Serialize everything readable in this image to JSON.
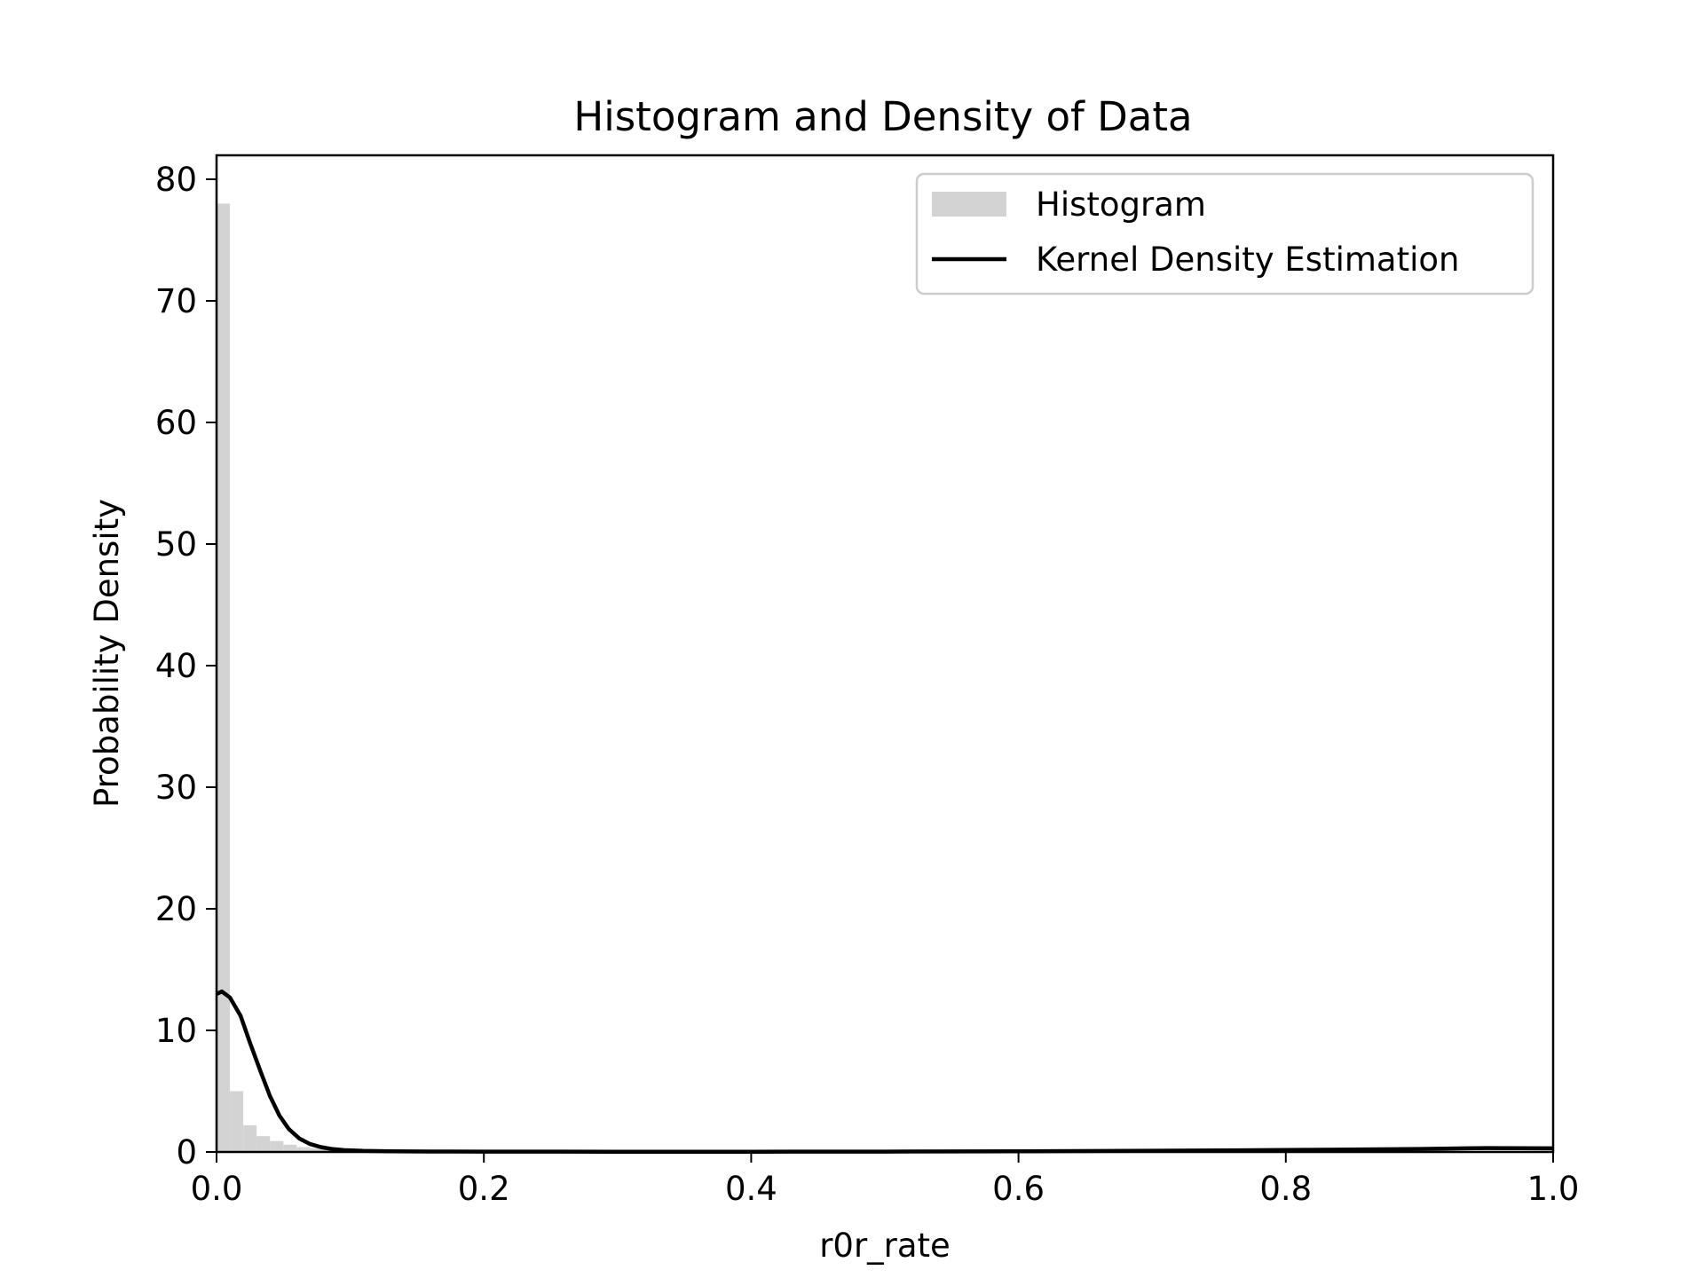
{
  "chart_data": {
    "type": "bar",
    "title": "Histogram and Density of Data",
    "xlabel": "r0r_rate",
    "ylabel": "Probability Density",
    "xlim": [
      0.0,
      1.0
    ],
    "ylim": [
      0,
      82
    ],
    "xticks": [
      0.0,
      0.2,
      0.4,
      0.6,
      0.8,
      1.0
    ],
    "xtick_labels": [
      "0.0",
      "0.2",
      "0.4",
      "0.6",
      "0.8",
      "1.0"
    ],
    "yticks": [
      0,
      10,
      20,
      30,
      40,
      50,
      60,
      70,
      80
    ],
    "ytick_labels": [
      "0",
      "10",
      "20",
      "30",
      "40",
      "50",
      "60",
      "70",
      "80"
    ],
    "grid": false,
    "legend_position": "top-right",
    "histogram": {
      "name": "Histogram",
      "color": "#d3d3d3",
      "bin_width": 0.01,
      "bins": [
        {
          "x0": 0.0,
          "value": 78.0
        },
        {
          "x0": 0.01,
          "value": 5.0
        },
        {
          "x0": 0.02,
          "value": 2.2
        },
        {
          "x0": 0.03,
          "value": 1.3
        },
        {
          "x0": 0.04,
          "value": 0.9
        },
        {
          "x0": 0.05,
          "value": 0.6
        },
        {
          "x0": 0.06,
          "value": 0.4
        },
        {
          "x0": 0.07,
          "value": 0.3
        },
        {
          "x0": 0.08,
          "value": 0.2
        },
        {
          "x0": 0.09,
          "value": 0.15
        },
        {
          "x0": 0.1,
          "value": 0.1
        },
        {
          "x0": 0.11,
          "value": 0.08
        },
        {
          "x0": 0.12,
          "value": 0.06
        },
        {
          "x0": 0.13,
          "value": 0.05
        }
      ]
    },
    "kde": {
      "name": "Kernel Density Estimation",
      "color": "#000000",
      "x": [
        0.0,
        0.004,
        0.01,
        0.018,
        0.025,
        0.033,
        0.04,
        0.047,
        0.054,
        0.062,
        0.07,
        0.078,
        0.086,
        0.095,
        0.11,
        0.13,
        0.16,
        0.2,
        0.3,
        0.4,
        0.5,
        0.6,
        0.7,
        0.8,
        0.9,
        0.95,
        1.0
      ],
      "y": [
        13.0,
        13.2,
        12.7,
        11.2,
        9.0,
        6.6,
        4.6,
        3.0,
        1.9,
        1.1,
        0.65,
        0.4,
        0.25,
        0.15,
        0.09,
        0.06,
        0.04,
        0.03,
        0.02,
        0.02,
        0.03,
        0.05,
        0.1,
        0.16,
        0.25,
        0.32,
        0.3
      ]
    }
  }
}
